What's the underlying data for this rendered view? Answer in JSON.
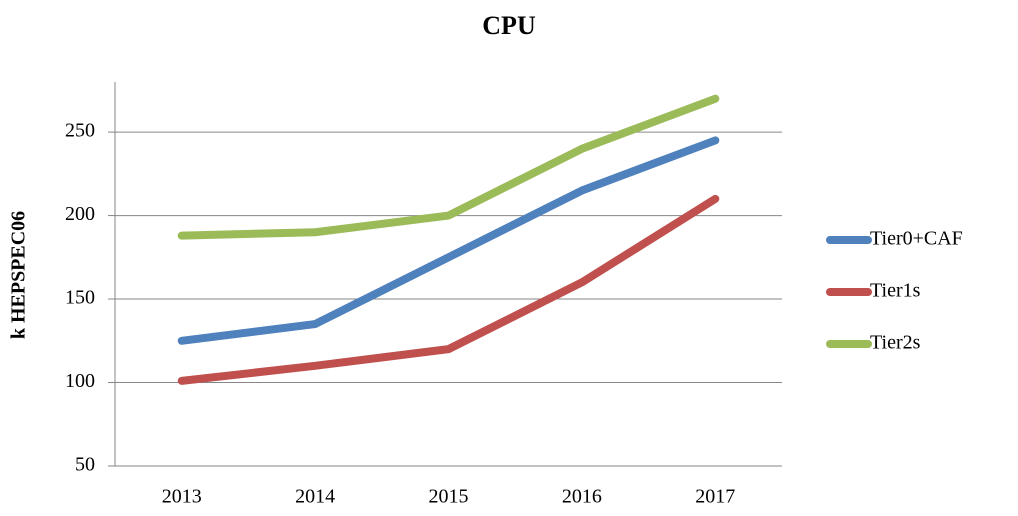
{
  "chart_data": {
    "type": "line",
    "title": "CPU",
    "y_label": "k HEPSPEC06",
    "categories": [
      "2013",
      "2014",
      "2015",
      "2016",
      "2017"
    ],
    "series": [
      {
        "name": "Tier0+CAF",
        "color": "#4f81bd",
        "values": [
          125,
          135,
          175,
          215,
          245
        ]
      },
      {
        "name": "Tier1s",
        "color": "#c0504d",
        "values": [
          101,
          110,
          120,
          160,
          210
        ]
      },
      {
        "name": "Tier2s",
        "color": "#9bbb59",
        "values": [
          188,
          190,
          200,
          240,
          270
        ]
      }
    ],
    "ylim": [
      50,
      280
    ],
    "yticks": [
      50,
      100,
      150,
      200,
      250
    ],
    "grid": true,
    "legend": "right"
  }
}
